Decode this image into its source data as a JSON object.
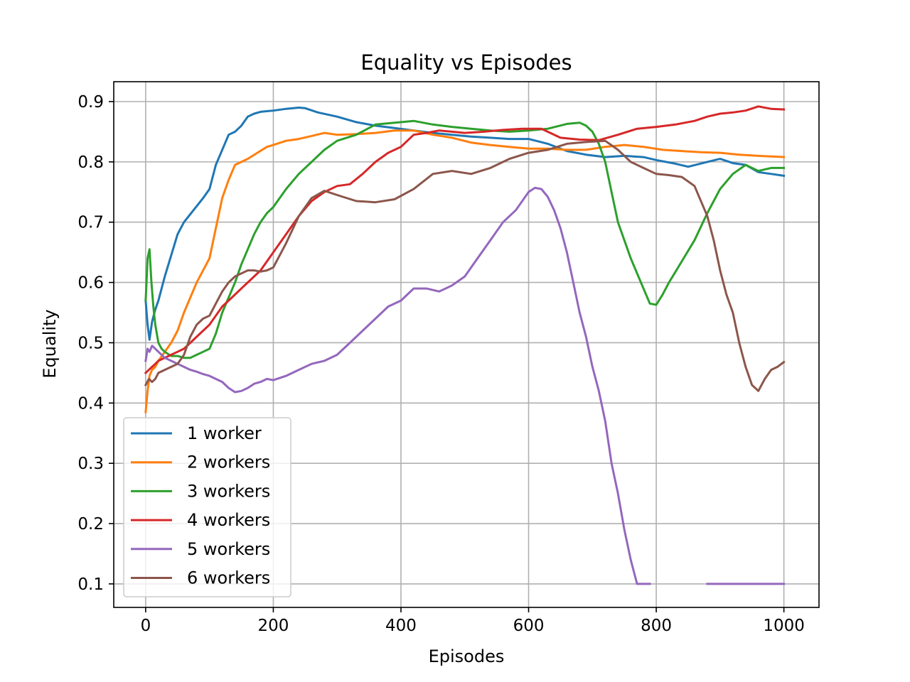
{
  "chart_data": {
    "type": "line",
    "title": "Equality vs Episodes",
    "xlabel": "Episodes",
    "ylabel": "Equality",
    "xlim": [
      -50,
      1055
    ],
    "ylim": [
      0.061,
      0.933
    ],
    "xticks": [
      0,
      200,
      400,
      600,
      800,
      1000
    ],
    "yticks": [
      0.1,
      0.2,
      0.3,
      0.4,
      0.5,
      0.6,
      0.7,
      0.8,
      0.9
    ],
    "xtick_labels": [
      "0",
      "200",
      "400",
      "600",
      "800",
      "1000"
    ],
    "ytick_labels": [
      "0.1",
      "0.2",
      "0.3",
      "0.4",
      "0.5",
      "0.6",
      "0.7",
      "0.8",
      "0.9"
    ],
    "grid": true,
    "legend_position": "lower-left",
    "series": [
      {
        "name": "1 worker",
        "color": "#1f77b4",
        "x": [
          0,
          3,
          6,
          10,
          15,
          20,
          30,
          40,
          50,
          60,
          75,
          90,
          100,
          110,
          120,
          130,
          140,
          150,
          160,
          170,
          180,
          200,
          220,
          240,
          250,
          270,
          300,
          330,
          360,
          390,
          420,
          450,
          480,
          510,
          540,
          570,
          600,
          630,
          660,
          690,
          720,
          750,
          780,
          800,
          830,
          850,
          880,
          900,
          920,
          940,
          960,
          980,
          1000
        ],
        "y": [
          0.57,
          0.53,
          0.505,
          0.535,
          0.555,
          0.57,
          0.61,
          0.645,
          0.68,
          0.7,
          0.72,
          0.74,
          0.755,
          0.795,
          0.82,
          0.845,
          0.85,
          0.86,
          0.875,
          0.88,
          0.883,
          0.885,
          0.888,
          0.89,
          0.889,
          0.882,
          0.875,
          0.866,
          0.86,
          0.856,
          0.852,
          0.848,
          0.845,
          0.842,
          0.84,
          0.838,
          0.838,
          0.83,
          0.818,
          0.812,
          0.808,
          0.81,
          0.808,
          0.803,
          0.797,
          0.792,
          0.8,
          0.805,
          0.798,
          0.795,
          0.783,
          0.78,
          0.777
        ]
      },
      {
        "name": "2 workers",
        "color": "#ff7f0e",
        "x": [
          0,
          3,
          6,
          10,
          15,
          20,
          30,
          40,
          50,
          60,
          70,
          80,
          90,
          100,
          110,
          120,
          130,
          140,
          150,
          160,
          175,
          190,
          200,
          220,
          240,
          260,
          280,
          300,
          330,
          360,
          390,
          420,
          450,
          480,
          510,
          540,
          570,
          600,
          630,
          660,
          690,
          720,
          750,
          780,
          810,
          840,
          870,
          900,
          930,
          960,
          1000
        ],
        "y": [
          0.385,
          0.42,
          0.445,
          0.455,
          0.46,
          0.47,
          0.485,
          0.5,
          0.52,
          0.55,
          0.575,
          0.6,
          0.62,
          0.64,
          0.69,
          0.74,
          0.77,
          0.795,
          0.8,
          0.805,
          0.815,
          0.825,
          0.828,
          0.835,
          0.838,
          0.843,
          0.848,
          0.845,
          0.846,
          0.848,
          0.852,
          0.852,
          0.845,
          0.84,
          0.832,
          0.828,
          0.825,
          0.822,
          0.822,
          0.82,
          0.82,
          0.825,
          0.828,
          0.825,
          0.82,
          0.818,
          0.816,
          0.815,
          0.812,
          0.81,
          0.808
        ]
      },
      {
        "name": "3 workers",
        "color": "#2ca02c",
        "x": [
          0,
          3,
          6,
          9,
          12,
          15,
          20,
          25,
          30,
          40,
          50,
          60,
          70,
          80,
          90,
          100,
          110,
          120,
          130,
          140,
          150,
          160,
          170,
          180,
          190,
          200,
          220,
          240,
          260,
          280,
          300,
          330,
          360,
          390,
          420,
          450,
          480,
          510,
          540,
          570,
          600,
          630,
          660,
          680,
          690,
          700,
          710,
          720,
          730,
          740,
          760,
          780,
          790,
          800,
          810,
          820,
          840,
          860,
          880,
          900,
          920,
          940,
          960,
          980,
          1000
        ],
        "y": [
          0.57,
          0.64,
          0.655,
          0.6,
          0.56,
          0.53,
          0.5,
          0.49,
          0.485,
          0.478,
          0.478,
          0.475,
          0.475,
          0.48,
          0.485,
          0.49,
          0.515,
          0.55,
          0.575,
          0.6,
          0.63,
          0.655,
          0.68,
          0.7,
          0.715,
          0.725,
          0.755,
          0.78,
          0.8,
          0.82,
          0.835,
          0.845,
          0.862,
          0.865,
          0.868,
          0.862,
          0.858,
          0.855,
          0.852,
          0.85,
          0.852,
          0.855,
          0.863,
          0.865,
          0.86,
          0.85,
          0.83,
          0.8,
          0.75,
          0.7,
          0.64,
          0.59,
          0.565,
          0.563,
          0.58,
          0.6,
          0.635,
          0.67,
          0.715,
          0.755,
          0.78,
          0.795,
          0.785,
          0.79,
          0.79
        ]
      },
      {
        "name": "4 workers",
        "color": "#d62728",
        "x": [
          0,
          5,
          10,
          15,
          20,
          30,
          40,
          50,
          60,
          70,
          80,
          90,
          100,
          110,
          120,
          130,
          140,
          150,
          160,
          170,
          180,
          190,
          200,
          220,
          240,
          260,
          280,
          300,
          320,
          340,
          360,
          380,
          400,
          420,
          440,
          460,
          480,
          500,
          530,
          560,
          590,
          620,
          650,
          680,
          710,
          740,
          770,
          800,
          830,
          860,
          880,
          900,
          920,
          940,
          960,
          980,
          1000
        ],
        "y": [
          0.45,
          0.455,
          0.46,
          0.465,
          0.47,
          0.475,
          0.48,
          0.485,
          0.49,
          0.5,
          0.51,
          0.52,
          0.53,
          0.545,
          0.56,
          0.57,
          0.58,
          0.59,
          0.6,
          0.61,
          0.62,
          0.635,
          0.65,
          0.68,
          0.71,
          0.735,
          0.75,
          0.76,
          0.763,
          0.78,
          0.8,
          0.815,
          0.825,
          0.845,
          0.848,
          0.852,
          0.85,
          0.848,
          0.85,
          0.853,
          0.855,
          0.855,
          0.84,
          0.837,
          0.836,
          0.845,
          0.855,
          0.858,
          0.862,
          0.868,
          0.875,
          0.88,
          0.882,
          0.885,
          0.892,
          0.888,
          0.887
        ]
      },
      {
        "name": "5 workers",
        "color": "#9467bd",
        "x": [
          0,
          3,
          6,
          10,
          15,
          20,
          30,
          40,
          50,
          60,
          70,
          80,
          90,
          100,
          110,
          120,
          130,
          140,
          150,
          160,
          170,
          180,
          190,
          200,
          220,
          240,
          260,
          280,
          300,
          320,
          340,
          360,
          380,
          400,
          420,
          440,
          460,
          480,
          500,
          520,
          540,
          560,
          580,
          600,
          610,
          620,
          630,
          640,
          650,
          660,
          670,
          680,
          690,
          700,
          710,
          720,
          730,
          740,
          750,
          760,
          770,
          780,
          790,
          840,
          880,
          920,
          960,
          1000
        ],
        "y": [
          0.47,
          0.49,
          0.485,
          0.495,
          0.49,
          0.485,
          0.475,
          0.47,
          0.465,
          0.46,
          0.455,
          0.452,
          0.448,
          0.445,
          0.44,
          0.435,
          0.425,
          0.418,
          0.42,
          0.425,
          0.432,
          0.435,
          0.44,
          0.438,
          0.445,
          0.455,
          0.465,
          0.47,
          0.48,
          0.5,
          0.52,
          0.54,
          0.56,
          0.57,
          0.59,
          0.59,
          0.585,
          0.595,
          0.61,
          0.64,
          0.67,
          0.7,
          0.72,
          0.75,
          0.757,
          0.755,
          0.742,
          0.72,
          0.69,
          0.65,
          0.6,
          0.55,
          0.51,
          0.46,
          0.42,
          0.37,
          0.3,
          0.25,
          0.19,
          0.14,
          0.1,
          0.1,
          0.1,
          null,
          0.1,
          0.1,
          0.1,
          0.1
        ]
      },
      {
        "name": "6 workers",
        "color": "#8c564b",
        "x": [
          0,
          5,
          10,
          15,
          20,
          30,
          40,
          50,
          60,
          70,
          80,
          90,
          100,
          110,
          120,
          130,
          140,
          150,
          160,
          170,
          180,
          190,
          200,
          220,
          240,
          260,
          280,
          300,
          330,
          360,
          390,
          420,
          450,
          480,
          510,
          540,
          570,
          600,
          630,
          660,
          690,
          720,
          740,
          760,
          780,
          800,
          820,
          840,
          860,
          880,
          890,
          900,
          910,
          920,
          930,
          940,
          950,
          960,
          970,
          980,
          990,
          1000
        ],
        "y": [
          0.43,
          0.44,
          0.435,
          0.44,
          0.45,
          0.455,
          0.46,
          0.465,
          0.48,
          0.51,
          0.53,
          0.54,
          0.545,
          0.565,
          0.585,
          0.6,
          0.61,
          0.615,
          0.62,
          0.62,
          0.618,
          0.62,
          0.625,
          0.665,
          0.71,
          0.74,
          0.752,
          0.745,
          0.735,
          0.733,
          0.738,
          0.755,
          0.78,
          0.785,
          0.78,
          0.79,
          0.805,
          0.815,
          0.82,
          0.83,
          0.833,
          0.835,
          0.82,
          0.8,
          0.79,
          0.78,
          0.778,
          0.775,
          0.76,
          0.71,
          0.67,
          0.62,
          0.58,
          0.55,
          0.5,
          0.46,
          0.43,
          0.42,
          0.44,
          0.455,
          0.46,
          0.468
        ]
      }
    ]
  }
}
